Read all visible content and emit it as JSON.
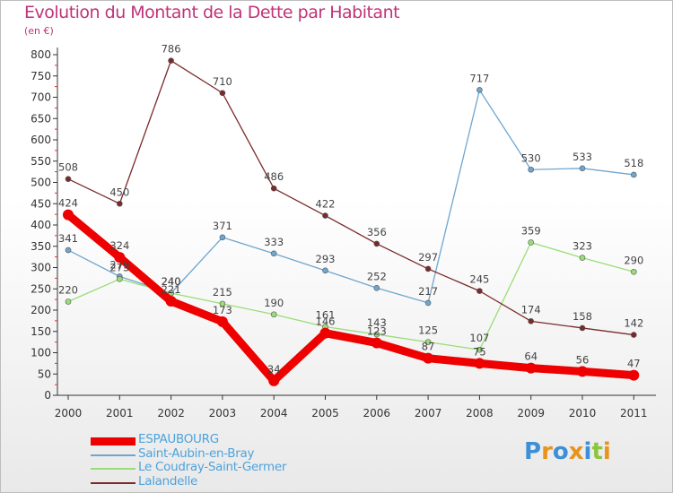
{
  "title": "Evolution du Montant de la Dette par Habitant",
  "subtitle": "(en €)",
  "brand": {
    "text": "Proxiti",
    "colors": [
      "#3d8fd6",
      "#e8931c",
      "#3d8fd6",
      "#e8931c",
      "#3d8fd6",
      "#8cc63f",
      "#e8931c"
    ]
  },
  "chart_data": {
    "type": "line",
    "x": [
      "2000",
      "2001",
      "2002",
      "2003",
      "2004",
      "2005",
      "2006",
      "2007",
      "2008",
      "2009",
      "2010",
      "2011"
    ],
    "ylim": [
      0,
      800
    ],
    "yticks": [
      0,
      50,
      100,
      150,
      200,
      250,
      300,
      350,
      400,
      450,
      500,
      550,
      600,
      650,
      700,
      750,
      800
    ],
    "grid": false,
    "legend_position": "bottom-left",
    "series": [
      {
        "name": "ESPAUBOURG",
        "color": "#ee0000",
        "values": [
          424,
          324,
          221,
          173,
          34,
          146,
          123,
          87,
          75,
          64,
          56,
          47
        ]
      },
      {
        "name": "Saint-Aubin-en-Bray",
        "color": "#6fa6cf",
        "values": [
          341,
          279,
          240,
          371,
          333,
          293,
          252,
          217,
          717,
          530,
          533,
          518
        ]
      },
      {
        "name": "Le Coudray-Saint-Germer",
        "color": "#99dd77",
        "values": [
          220,
          273,
          240,
          215,
          190,
          161,
          143,
          125,
          107,
          359,
          323,
          290
        ]
      },
      {
        "name": "Lalandelle",
        "color": "#7a2a2a",
        "values": [
          508,
          450,
          786,
          710,
          486,
          422,
          356,
          297,
          245,
          174,
          158,
          142
        ]
      }
    ]
  }
}
